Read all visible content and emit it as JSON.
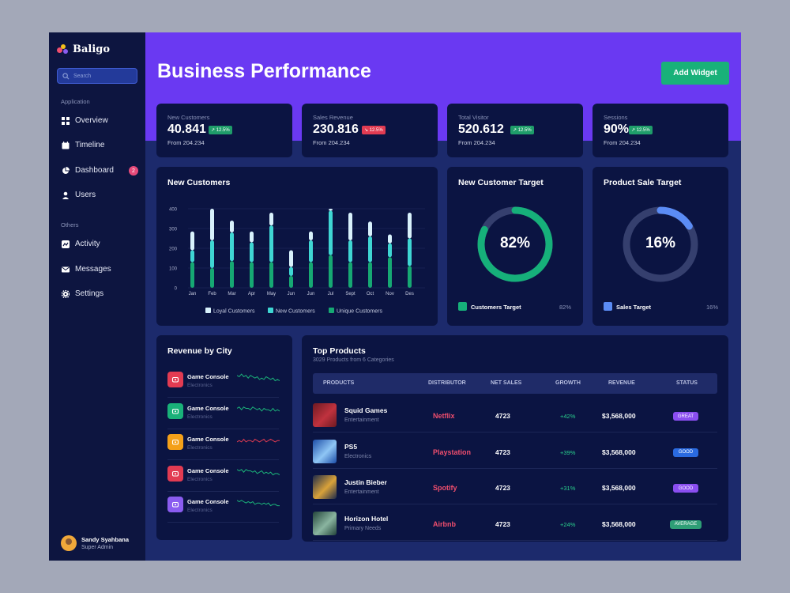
{
  "app": {
    "name": "Baligo"
  },
  "search": {
    "placeholder": "Search"
  },
  "sidebar": {
    "groups": [
      "Application",
      "Others"
    ],
    "items": [
      {
        "label": "Overview",
        "icon": "grid-icon"
      },
      {
        "label": "Timeline",
        "icon": "calendar-icon"
      },
      {
        "label": "Dashboard",
        "icon": "pie-chart-icon",
        "badge": "2"
      },
      {
        "label": "Users",
        "icon": "user-icon"
      },
      {
        "label": "Activity",
        "icon": "activity-icon"
      },
      {
        "label": "Messages",
        "icon": "mail-icon"
      },
      {
        "label": "Settings",
        "icon": "gear-icon"
      }
    ]
  },
  "user": {
    "name": "Sandy Syahbana",
    "role": "Super Admin"
  },
  "header": {
    "title": "Business Performance",
    "add_widget": "Add Widget"
  },
  "stats": [
    {
      "label": "New Customers",
      "value": "40.841",
      "change": "↗ 12.5%",
      "trend": "up",
      "from": "From 204.234"
    },
    {
      "label": "Sales Revenue",
      "value": "230.816",
      "change": "↘ 12.5%",
      "trend": "down",
      "from": "From 204.234"
    },
    {
      "label": "Total Visitor",
      "value": "520.612",
      "change": "↗ 12.5%",
      "trend": "up",
      "from": "From 204.234"
    },
    {
      "label": "Sessions",
      "value": "90%",
      "change": "↗ 12.5%",
      "trend": "up",
      "from": "From 204.234"
    }
  ],
  "new_customers_chart": {
    "title": "New Customers"
  },
  "chart_data": [
    {
      "type": "bar",
      "title": "New Customers",
      "categories": [
        "Jan",
        "Feb",
        "Mar",
        "Apr",
        "May",
        "Jun",
        "Jun",
        "Jul",
        "Sept",
        "Oct",
        "Nov",
        "Des"
      ],
      "y_ticks": [
        "0",
        "100",
        "200",
        "300",
        "400"
      ],
      "ylim": [
        0,
        400
      ],
      "stacked": true,
      "series": [
        {
          "name": "Unique Customers",
          "color": "#16a873",
          "values": [
            130,
            100,
            135,
            130,
            130,
            60,
            130,
            165,
            130,
            130,
            155,
            110
          ]
        },
        {
          "name": "New Customers",
          "color": "#3fd6d3",
          "values": [
            60,
            140,
            145,
            100,
            185,
            45,
            110,
            225,
            110,
            130,
            70,
            140
          ]
        },
        {
          "name": "Loyal Customers",
          "color": "#d8f1fb",
          "values": [
            95,
            160,
            60,
            55,
            65,
            85,
            45,
            10,
            140,
            75,
            45,
            130
          ]
        }
      ],
      "legend": "bottom",
      "grid": true
    },
    {
      "type": "pie",
      "title": "New Customer Target",
      "values": [
        82,
        18
      ],
      "color": "#16b07a",
      "center_label": "82%"
    },
    {
      "type": "pie",
      "title": "Product Sale Target",
      "values": [
        16,
        84
      ],
      "color": "#5b8cf5",
      "center_label": "16%"
    }
  ],
  "targets": [
    {
      "title": "New Customer Target",
      "pct": "82%",
      "legend": "Customers Target",
      "legend_val": "82%"
    },
    {
      "title": "Product Sale Target",
      "pct": "16%",
      "legend": "Sales Target",
      "legend_val": "16%"
    }
  ],
  "revenue_city": {
    "title": "Revenue by City",
    "items": [
      {
        "name": "Game Console",
        "sub": "Electronics",
        "color": "#e23b52",
        "icon": "gamepad-icon",
        "spark_color": "#1bb37a",
        "spark": [
          6,
          5,
          7,
          5,
          6,
          4,
          6,
          5,
          4,
          5,
          3,
          4,
          3,
          5,
          4,
          3,
          4,
          2,
          3,
          2
        ]
      },
      {
        "name": "Game Console",
        "sub": "Electronics",
        "color": "#19b179",
        "icon": "play-icon",
        "spark_color": "#1bb37a",
        "spark": [
          5,
          6,
          4,
          6,
          5,
          5,
          4,
          6,
          5,
          4,
          5,
          3,
          5,
          4,
          4,
          3,
          5,
          3,
          4,
          3
        ]
      },
      {
        "name": "Game Console",
        "sub": "Electronics",
        "color": "#f4a019",
        "icon": "robot-icon",
        "spark_color": "#e23b52",
        "spark": [
          3,
          4,
          3,
          5,
          3,
          4,
          4,
          3,
          5,
          4,
          3,
          4,
          5,
          3,
          4,
          5,
          4,
          3,
          4,
          4
        ]
      },
      {
        "name": "Game Console",
        "sub": "Electronics",
        "color": "#e23b52",
        "icon": "robot-icon",
        "spark_color": "#1bb37a",
        "spark": [
          6,
          5,
          6,
          4,
          6,
          5,
          5,
          4,
          5,
          3,
          4,
          5,
          3,
          4,
          3,
          4,
          2,
          3,
          3,
          2
        ]
      },
      {
        "name": "Game Console",
        "sub": "Electronics",
        "color": "#8a5cf0",
        "icon": "bag-icon",
        "spark_color": "#1bb37a",
        "spark": [
          6,
          5,
          6,
          5,
          4,
          5,
          4,
          5,
          3,
          4,
          4,
          3,
          4,
          3,
          4,
          2,
          3,
          3,
          2,
          2
        ]
      }
    ]
  },
  "top_products": {
    "title": "Top Products",
    "subtitle": "3029 Products from 6 Categories",
    "columns": [
      "PRODUCTS",
      "DISTRIBUTOR",
      "NET SALES",
      "GROWTH",
      "REVENUE",
      "STATUS"
    ],
    "rows": [
      {
        "name": "Squid Games",
        "category": "Entertainment",
        "distributor": "Netflix",
        "net_sales": "4723",
        "growth": "+42%",
        "revenue": "$3,568,000",
        "status": "GREAT",
        "status_color": "#8a4ef0",
        "thumb": [
          "#6d1a22",
          "#c0323e"
        ]
      },
      {
        "name": "PS5",
        "category": "Electronics",
        "distributor": "Playstation",
        "net_sales": "4723",
        "growth": "+39%",
        "revenue": "$3,568,000",
        "status": "GOOD",
        "status_color": "#2a6ae0",
        "thumb": [
          "#1d4ea8",
          "#8fc6f5"
        ]
      },
      {
        "name": "Justin Bieber",
        "category": "Entertainment",
        "distributor": "Spotify",
        "net_sales": "4723",
        "growth": "+31%",
        "revenue": "$3,568,000",
        "status": "GOOD",
        "status_color": "#8a4ef0",
        "thumb": [
          "#1e2a4a",
          "#d9a23a"
        ]
      },
      {
        "name": "Horizon Hotel",
        "category": "Primary Needs",
        "distributor": "Airbnb",
        "net_sales": "4723",
        "growth": "+24%",
        "revenue": "$3,568,000",
        "status": "AVERAGE",
        "status_color": "#2e9e76",
        "thumb": [
          "#23443a",
          "#8ab5a0"
        ]
      }
    ]
  }
}
